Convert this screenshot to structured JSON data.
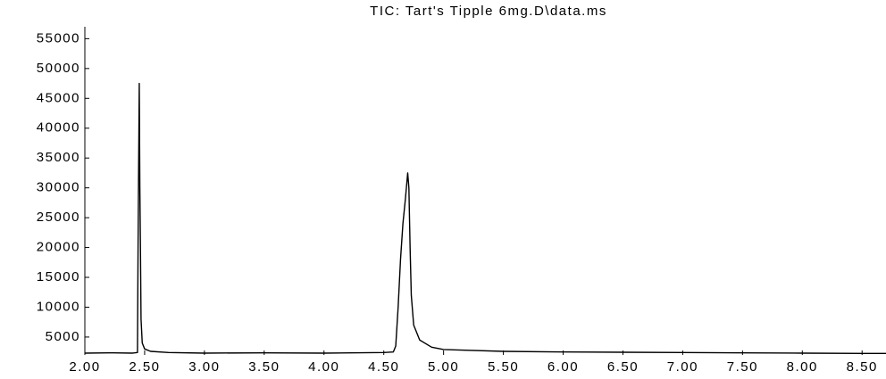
{
  "chart_data": {
    "type": "line",
    "title": "TIC: Tart's Tipple 6mg.D\\data.ms",
    "x": [
      2.0,
      2.2,
      2.4,
      2.44,
      2.445,
      2.45,
      2.455,
      2.46,
      2.465,
      2.47,
      2.48,
      2.5,
      2.55,
      2.7,
      3.0,
      3.5,
      4.0,
      4.5,
      4.58,
      4.6,
      4.62,
      4.64,
      4.66,
      4.68,
      4.7,
      4.71,
      4.72,
      4.73,
      4.75,
      4.8,
      4.9,
      5.0,
      5.5,
      6.0,
      6.5,
      7.0,
      7.5,
      8.0,
      8.5,
      8.7
    ],
    "series": [
      {
        "color": "#000000",
        "values": [
          2300,
          2350,
          2300,
          2400,
          20000,
          34000,
          47500,
          30000,
          20000,
          8000,
          4000,
          3000,
          2600,
          2400,
          2300,
          2350,
          2300,
          2400,
          2500,
          3500,
          10000,
          18000,
          24000,
          28000,
          32500,
          30000,
          20000,
          12000,
          7000,
          4500,
          3300,
          2900,
          2600,
          2500,
          2450,
          2400,
          2350,
          2300,
          2250,
          2250
        ]
      }
    ],
    "xlim": [
      2.0,
      8.7
    ],
    "xticks": [
      {
        "value": 2,
        "label": "2.00"
      },
      {
        "value": 2.5,
        "label": "2.50"
      },
      {
        "value": 3,
        "label": "3.00"
      },
      {
        "value": 3.5,
        "label": "3.50"
      },
      {
        "value": 4,
        "label": "4.00"
      },
      {
        "value": 4.5,
        "label": "4.50"
      },
      {
        "value": 5,
        "label": "5.00"
      },
      {
        "value": 5.5,
        "label": "5.50"
      },
      {
        "value": 6,
        "label": "6.00"
      },
      {
        "value": 6.5,
        "label": "6.50"
      },
      {
        "value": 7,
        "label": "7.00"
      },
      {
        "value": 7.5,
        "label": "7.50"
      },
      {
        "value": 8,
        "label": "8.00"
      },
      {
        "value": 8.5,
        "label": "8.50"
      }
    ],
    "ylim": [
      2000,
      57000
    ],
    "yticks": [
      5000,
      10000,
      15000,
      20000,
      25000,
      30000,
      35000,
      40000,
      45000,
      50000,
      55000
    ]
  }
}
